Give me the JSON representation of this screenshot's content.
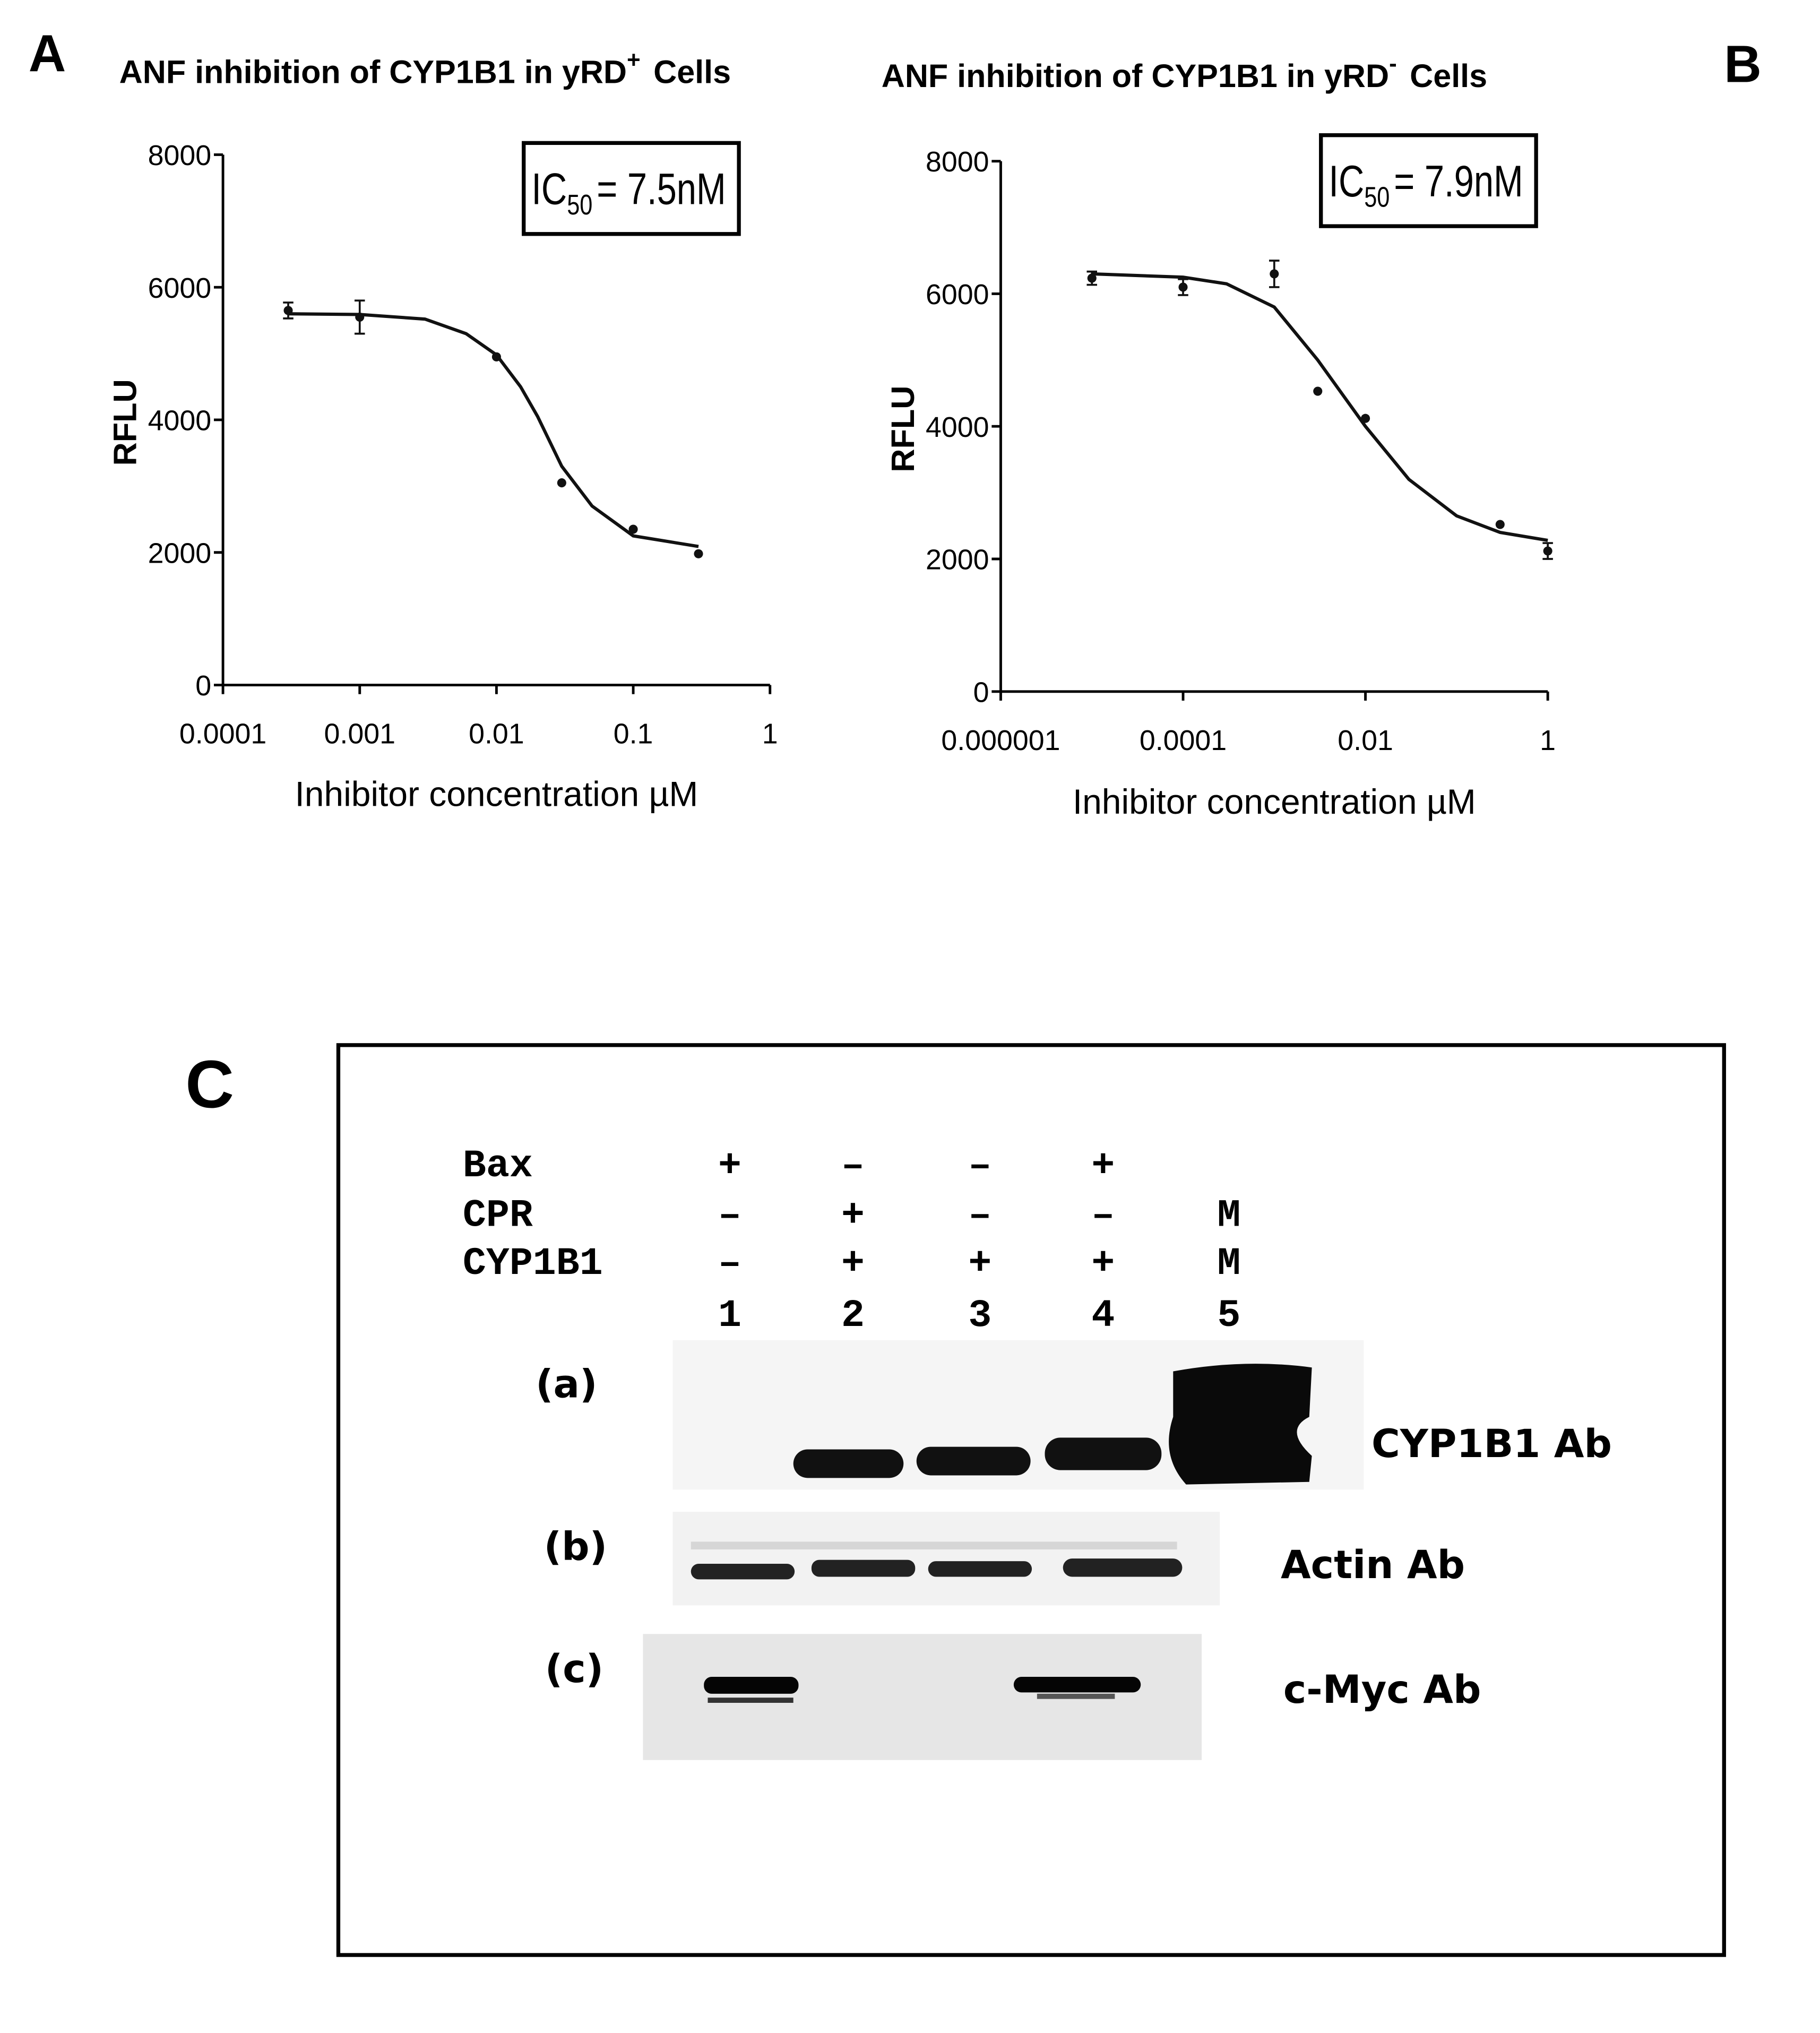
{
  "chart_data": [
    {
      "type": "scatter",
      "panel": "A",
      "title": {
        "main": "ANF inhibition of CYP1B1 in yRD",
        "sup": "+",
        "tail": "Cells"
      },
      "annotation": {
        "main": "IC",
        "sub": "50",
        "tail": "= 7.5nM"
      },
      "x_label": "Inhibitor concentration µM",
      "y_label": "RFLU",
      "xscale": "log",
      "xlim": [
        0.0001,
        1
      ],
      "xticks": [
        0.0001,
        0.001,
        0.01,
        0.1,
        1
      ],
      "ylim": [
        0,
        8000
      ],
      "yticks": [
        0,
        2000,
        4000,
        6000,
        8000
      ],
      "series": [
        {
          "mode": "markers",
          "color": "#111111",
          "x": [
            0.0003,
            0.001,
            0.01,
            0.03,
            0.1,
            0.3
          ],
          "values": [
            5650,
            5550,
            4950,
            3050,
            2350,
            1980
          ],
          "errors": [
            120,
            250,
            null,
            null,
            null,
            null
          ]
        },
        {
          "mode": "line",
          "color": "#111111",
          "x": [
            0.0003,
            0.001,
            0.003,
            0.006,
            0.01,
            0.015,
            0.02,
            0.03,
            0.05,
            0.1,
            0.3
          ],
          "values": [
            5600,
            5590,
            5520,
            5300,
            4980,
            4500,
            4050,
            3300,
            2700,
            2250,
            2090
          ]
        }
      ]
    },
    {
      "type": "scatter",
      "panel": "B",
      "title": {
        "main": "ANF inhibition of CYP1B1 in yRD",
        "sup": "-",
        "tail": "Cells"
      },
      "annotation": {
        "main": "IC",
        "sub": "50",
        "tail": "= 7.9nM"
      },
      "x_label": "Inhibitor concentration µM",
      "y_label": "RFLU",
      "xscale": "log",
      "xlim": [
        1e-06,
        1
      ],
      "xticks": [
        1e-06,
        0.0001,
        0.01,
        1
      ],
      "ylim": [
        0,
        8000
      ],
      "yticks": [
        0,
        2000,
        4000,
        6000,
        8000
      ],
      "series": [
        {
          "mode": "markers",
          "color": "#111111",
          "x": [
            1e-05,
            0.0001,
            0.001,
            0.003,
            0.01,
            0.3,
            1
          ],
          "values": [
            6235,
            6100,
            6300,
            4530,
            4120,
            2520,
            2120
          ],
          "errors": [
            100,
            120,
            200,
            null,
            null,
            null,
            120
          ]
        },
        {
          "mode": "line",
          "color": "#111111",
          "x": [
            1e-05,
            0.0001,
            0.0003,
            0.001,
            0.003,
            0.01,
            0.03,
            0.1,
            0.3,
            1
          ],
          "values": [
            6300,
            6250,
            6150,
            5800,
            5000,
            4000,
            3200,
            2650,
            2400,
            2280
          ]
        }
      ]
    }
  ],
  "panel_c": {
    "letter": "C",
    "rows": [
      {
        "label": "Bax",
        "cells": [
          "+",
          "–",
          "–",
          "+"
        ]
      },
      {
        "label": "CPR",
        "cells": [
          "–",
          "+",
          "–",
          "–",
          "M"
        ]
      },
      {
        "label": "CYP1B1",
        "cells": [
          "–",
          "+",
          "+",
          "+",
          "M"
        ]
      }
    ],
    "lanes": [
      "1",
      "2",
      "3",
      "4",
      "5"
    ],
    "blots": [
      {
        "tag": "(a)",
        "antibody": "CYP1B1 Ab"
      },
      {
        "tag": "(b)",
        "antibody": "Actin Ab"
      },
      {
        "tag": "(c)",
        "antibody": "c-Myc Ab"
      }
    ]
  }
}
